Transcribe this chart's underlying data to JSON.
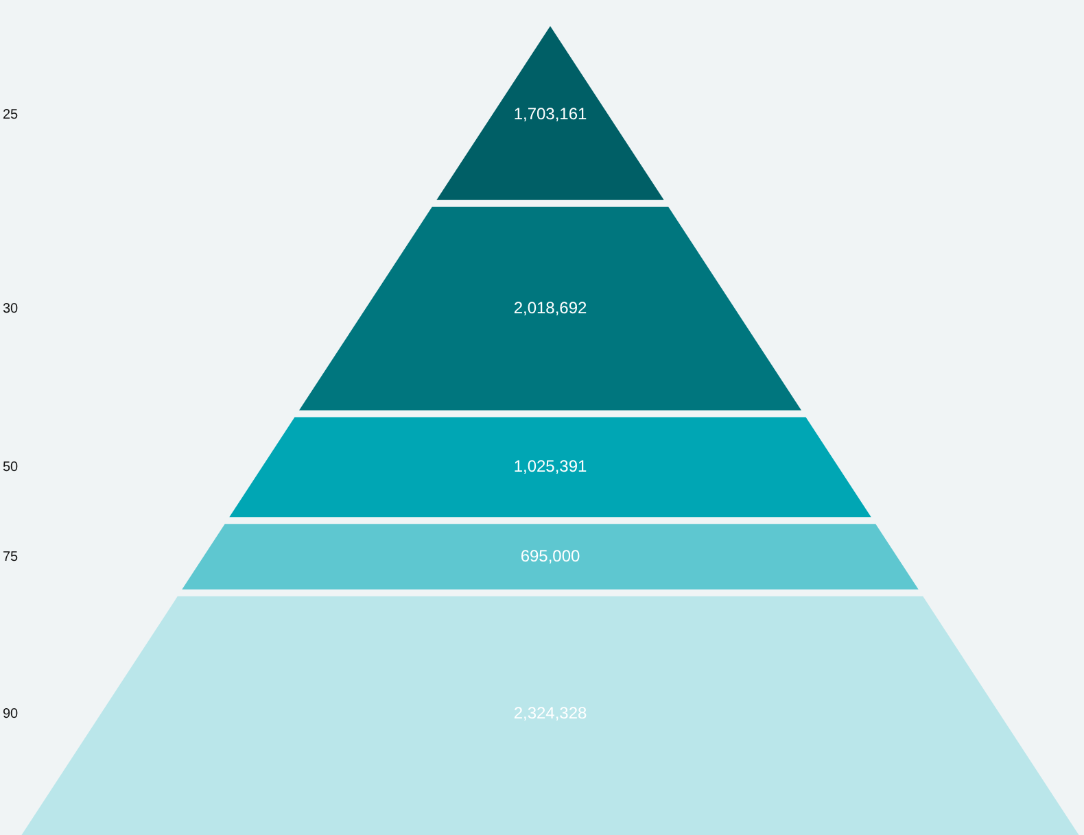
{
  "chart_data": {
    "type": "other",
    "categories": [
      "25",
      "30",
      "50",
      "75",
      "90"
    ],
    "values": [
      1703161,
      2018692,
      1025391,
      695000,
      2324328
    ],
    "value_labels": [
      "1,703,161",
      "2,018,692",
      "1,025,391",
      "695,000",
      "2,324,328"
    ],
    "colors": [
      "#005f66",
      "#00767e",
      "#00a6b4",
      "#5ec7d0",
      "#bae6ea"
    ]
  }
}
